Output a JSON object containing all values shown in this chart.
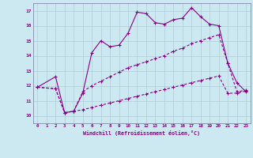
{
  "xlabel": "Windchill (Refroidissement éolien,°C)",
  "background_color": "#cce8f0",
  "grid_color": "#b0ccd8",
  "line_color": "#880088",
  "xlim": [
    -0.5,
    23.5
  ],
  "ylim": [
    9.5,
    17.5
  ],
  "xticks": [
    0,
    1,
    2,
    3,
    4,
    5,
    6,
    7,
    8,
    9,
    10,
    11,
    12,
    13,
    14,
    15,
    16,
    17,
    18,
    19,
    20,
    21,
    22,
    23
  ],
  "yticks": [
    10,
    11,
    12,
    13,
    14,
    15,
    16,
    17
  ],
  "line1_x": [
    0,
    2,
    3,
    4,
    5,
    6,
    7,
    8,
    9,
    10,
    11,
    12,
    13,
    14,
    15,
    16,
    17,
    18,
    19,
    20,
    21,
    22,
    23
  ],
  "line1_y": [
    11.9,
    12.6,
    10.2,
    10.3,
    11.5,
    14.2,
    15.0,
    14.6,
    14.7,
    15.5,
    16.9,
    16.8,
    16.2,
    16.1,
    16.4,
    16.5,
    17.2,
    16.6,
    16.1,
    16.0,
    13.5,
    12.2,
    11.6
  ],
  "line2_x": [
    0,
    2,
    3,
    4,
    5,
    6,
    7,
    8,
    9,
    10,
    11,
    12,
    13,
    14,
    15,
    16,
    17,
    18,
    19,
    20,
    21,
    22,
    23
  ],
  "line2_y": [
    11.9,
    11.8,
    10.2,
    10.3,
    11.6,
    12.0,
    12.3,
    12.6,
    12.9,
    13.2,
    13.4,
    13.6,
    13.8,
    14.0,
    14.3,
    14.5,
    14.8,
    15.0,
    15.2,
    15.4,
    13.5,
    11.6,
    11.7
  ],
  "line3_x": [
    0,
    2,
    3,
    4,
    5,
    6,
    7,
    8,
    9,
    10,
    11,
    12,
    13,
    14,
    15,
    16,
    17,
    18,
    19,
    20,
    21,
    22,
    23
  ],
  "line3_y": [
    11.9,
    11.8,
    10.2,
    10.3,
    10.4,
    10.55,
    10.7,
    10.85,
    11.0,
    11.15,
    11.3,
    11.45,
    11.6,
    11.75,
    11.9,
    12.05,
    12.2,
    12.35,
    12.5,
    12.65,
    11.5,
    11.5,
    11.65
  ]
}
